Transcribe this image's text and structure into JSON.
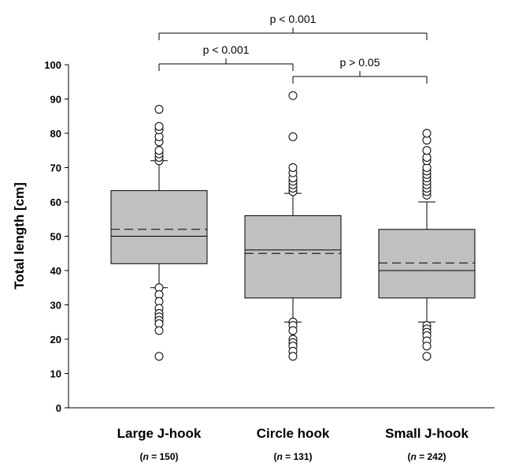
{
  "chart_data": {
    "type": "box",
    "ylabel": "Total length [cm]",
    "ylim": [
      0,
      100
    ],
    "yticks": [
      0,
      10,
      20,
      30,
      40,
      50,
      60,
      70,
      80,
      90,
      100
    ],
    "box_fill": "#c0c0c0",
    "categories": [
      {
        "name": "Large J-hook",
        "n_prefix": "(",
        "n_symbol": "n",
        "n_suffix": " = 150)",
        "q1": 42,
        "median": 50,
        "mean": 52,
        "q3": 63.3,
        "whisker_low": 35,
        "whisker_high": 72,
        "outliers": [
          35,
          33,
          31,
          29,
          27.5,
          26.5,
          25.5,
          24.5,
          22.5,
          15,
          72,
          73,
          74,
          75,
          77.5,
          79,
          81,
          82,
          87
        ]
      },
      {
        "name": "Circle hook",
        "n_prefix": "(",
        "n_symbol": "n",
        "n_suffix": " = 131)",
        "q1": 32,
        "median": 46,
        "mean": 45,
        "q3": 56,
        "whisker_low": 25,
        "whisker_high": 62.5,
        "outliers": [
          25,
          24,
          22.5,
          20,
          19,
          18,
          16.5,
          15,
          63,
          64,
          65,
          66,
          67,
          68.5,
          70,
          79,
          91
        ]
      },
      {
        "name": "Small J-hook",
        "n_prefix": "(",
        "n_symbol": "n",
        "n_suffix": " = 242)",
        "q1": 32,
        "median": 40,
        "mean": 42.2,
        "q3": 52,
        "whisker_low": 25,
        "whisker_high": 60,
        "outliers": [
          24,
          23,
          22,
          21,
          19.5,
          18,
          15,
          62,
          63,
          64,
          65,
          66,
          67,
          68,
          69,
          70,
          72,
          73,
          75,
          78,
          80
        ]
      }
    ],
    "comparisons": [
      {
        "from": 0,
        "to": 2,
        "level": 100,
        "label": "p < 0.001"
      },
      {
        "from": 0,
        "to": 1,
        "level": 92,
        "label": "p < 0.001"
      },
      {
        "from": 1,
        "to": 2,
        "level": 84,
        "label": "p > 0.05"
      }
    ]
  }
}
